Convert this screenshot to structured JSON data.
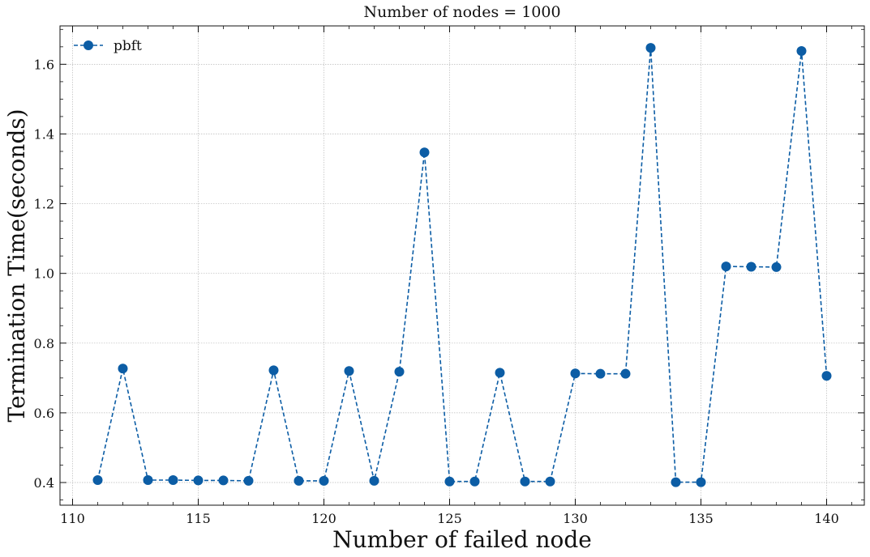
{
  "chart_data": {
    "type": "line",
    "title": "Number of nodes = 1000",
    "xlabel": "Number of failed node",
    "ylabel": "Termination Time(seconds)",
    "xlim": [
      109.5,
      141.5
    ],
    "ylim": [
      0.335,
      1.71
    ],
    "xticks": [
      110,
      115,
      120,
      125,
      130,
      135,
      140
    ],
    "yticks": [
      0.4,
      0.6,
      0.8,
      1.0,
      1.2,
      1.4,
      1.6
    ],
    "ytick_labels": [
      "0.4",
      "0.6",
      "0.8",
      "1.0",
      "1.2",
      "1.4",
      "1.6"
    ],
    "grid": true,
    "legend_position": "top-left",
    "series": [
      {
        "name": "pbft",
        "color": "#0c5da5",
        "line_style": "dashed",
        "marker": "circle",
        "x": [
          111,
          112,
          113,
          114,
          115,
          116,
          117,
          118,
          119,
          120,
          121,
          122,
          123,
          124,
          125,
          126,
          127,
          128,
          129,
          130,
          131,
          132,
          133,
          134,
          135,
          136,
          137,
          138,
          139,
          140
        ],
        "y": [
          0.407,
          0.727,
          0.407,
          0.407,
          0.406,
          0.406,
          0.405,
          0.722,
          0.405,
          0.405,
          0.72,
          0.405,
          0.718,
          1.347,
          0.403,
          0.403,
          0.715,
          0.403,
          0.403,
          0.713,
          0.712,
          0.712,
          1.647,
          0.401,
          0.401,
          1.02,
          1.019,
          1.018,
          1.638,
          0.706
        ]
      }
    ]
  }
}
